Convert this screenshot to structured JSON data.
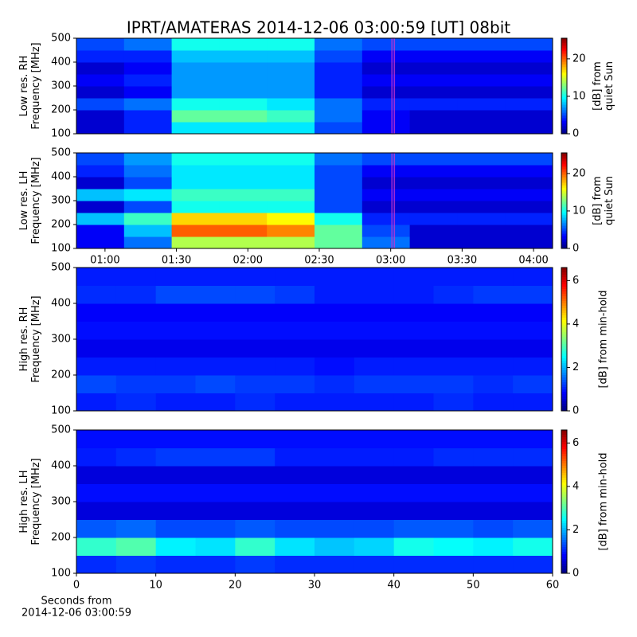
{
  "figure_title": "IPRT/AMATERAS 2014-12-06 03:00:59 [UT]   08bit",
  "chart_data": [
    {
      "type": "heatmap",
      "ylabel": [
        "Low res. RH",
        "Frequency [MHz]"
      ],
      "colorbar_label": [
        "[dB] from",
        "quiet Sun"
      ],
      "colormap": "jet",
      "xlim": [
        48,
        248
      ],
      "ylim": [
        100,
        500
      ],
      "yticks": [
        100,
        200,
        300,
        400,
        500
      ],
      "clim": [
        0,
        25.5
      ],
      "cticks": [
        0,
        10,
        20
      ],
      "marker_x": 181,
      "marker_color": "#cc33cc",
      "xbins": [
        48,
        68,
        88,
        108,
        128,
        148,
        168,
        188,
        208,
        228,
        248
      ],
      "ybins": [
        100,
        150,
        200,
        250,
        300,
        350,
        400,
        450,
        500
      ],
      "z": [
        [
          2,
          4,
          9,
          9,
          9,
          5,
          3,
          2,
          2,
          2
        ],
        [
          2,
          4,
          12,
          12,
          11,
          6,
          3,
          2,
          2,
          2
        ],
        [
          5,
          6,
          10,
          10,
          9,
          6,
          4,
          4,
          4,
          4
        ],
        [
          2,
          3,
          7,
          7,
          7,
          4,
          2,
          2,
          2,
          2
        ],
        [
          3,
          4,
          7,
          7,
          7,
          4,
          3,
          3,
          3,
          3
        ],
        [
          2,
          3,
          7,
          7,
          7,
          4,
          2,
          2,
          2,
          2
        ],
        [
          4,
          4,
          8,
          8,
          8,
          5,
          3,
          3,
          3,
          3
        ],
        [
          5,
          6,
          10,
          10,
          10,
          6,
          5,
          5,
          5,
          5
        ]
      ]
    },
    {
      "type": "heatmap",
      "ylabel": [
        "Low res. LH",
        "Frequency [MHz]"
      ],
      "colorbar_label": [
        "[dB] from",
        "quiet Sun"
      ],
      "colormap": "jet",
      "xlim": [
        48,
        248
      ],
      "ylim": [
        100,
        500
      ],
      "yticks": [
        100,
        200,
        300,
        400,
        500
      ],
      "xticks": [
        {
          "value": 60,
          "label": "01:00"
        },
        {
          "value": 90,
          "label": "01:30"
        },
        {
          "value": 120,
          "label": "02:00"
        },
        {
          "value": 150,
          "label": "02:30"
        },
        {
          "value": 180,
          "label": "03:00"
        },
        {
          "value": 210,
          "label": "03:30"
        },
        {
          "value": 240,
          "label": "04:00"
        }
      ],
      "clim": [
        0,
        25.5
      ],
      "cticks": [
        0,
        10,
        20
      ],
      "marker_x": 181,
      "marker_color": "#cc33cc",
      "xbins": [
        48,
        68,
        88,
        108,
        128,
        148,
        168,
        188,
        208,
        228,
        248
      ],
      "ybins": [
        100,
        150,
        200,
        250,
        300,
        350,
        400,
        450,
        500
      ],
      "z": [
        [
          3,
          6,
          14,
          14,
          14,
          12,
          6,
          2,
          2,
          2
        ],
        [
          3,
          8,
          20,
          20,
          19,
          12,
          5,
          2,
          2,
          2
        ],
        [
          8,
          11,
          17,
          17,
          16,
          10,
          4,
          4,
          4,
          4
        ],
        [
          2,
          5,
          10,
          10,
          10,
          5,
          2,
          2,
          2,
          2
        ],
        [
          8,
          9,
          11,
          11,
          11,
          5,
          3,
          3,
          3,
          3
        ],
        [
          2,
          5,
          9,
          9,
          9,
          5,
          2,
          2,
          2,
          2
        ],
        [
          4,
          6,
          9,
          9,
          9,
          5,
          3,
          3,
          3,
          3
        ],
        [
          5,
          7,
          10,
          10,
          10,
          6,
          5,
          5,
          5,
          5
        ]
      ]
    },
    {
      "type": "heatmap",
      "ylabel": [
        "High res. RH",
        "Frequency [MHz]"
      ],
      "colorbar_label": [
        "[dB] from min-hold"
      ],
      "colormap": "jet",
      "xlim": [
        0,
        60
      ],
      "ylim": [
        100,
        500
      ],
      "yticks": [
        100,
        200,
        300,
        400,
        500
      ],
      "clim": [
        0,
        6.6
      ],
      "cticks": [
        0,
        2,
        4,
        6
      ],
      "xbins": [
        0,
        5,
        10,
        15,
        20,
        25,
        30,
        35,
        40,
        45,
        50,
        55,
        60
      ],
      "ybins": [
        100,
        150,
        200,
        250,
        300,
        350,
        400,
        450,
        500
      ],
      "z": [
        [
          1.0,
          1.1,
          1.0,
          1.0,
          1.1,
          1.0,
          1.0,
          1.0,
          1.0,
          1.1,
          1.0,
          1.0
        ],
        [
          1.3,
          1.2,
          1.2,
          1.3,
          1.2,
          1.2,
          1.1,
          1.2,
          1.2,
          1.2,
          1.1,
          1.2
        ],
        [
          1.0,
          1.0,
          1.0,
          1.0,
          1.0,
          1.0,
          0.9,
          1.0,
          1.0,
          1.0,
          1.0,
          1.0
        ],
        [
          0.7,
          0.7,
          0.7,
          0.7,
          0.7,
          0.7,
          0.7,
          0.7,
          0.7,
          0.7,
          0.7,
          0.7
        ],
        [
          0.9,
          0.9,
          0.9,
          0.9,
          0.9,
          0.9,
          0.9,
          0.9,
          0.9,
          0.9,
          0.9,
          0.9
        ],
        [
          0.8,
          0.8,
          0.8,
          0.8,
          0.8,
          0.8,
          0.8,
          0.8,
          0.8,
          0.8,
          0.8,
          0.8
        ],
        [
          1.1,
          1.1,
          1.3,
          1.3,
          1.3,
          1.2,
          1.0,
          1.0,
          1.0,
          1.1,
          1.2,
          1.2
        ],
        [
          1.0,
          1.0,
          1.0,
          1.0,
          1.0,
          1.0,
          1.0,
          1.0,
          1.0,
          1.0,
          1.0,
          1.0
        ]
      ]
    },
    {
      "type": "heatmap",
      "ylabel": [
        "High res. LH",
        "Frequency [MHz]"
      ],
      "colorbar_label": [
        "[dB] from min-hold"
      ],
      "colormap": "jet",
      "xlim": [
        0,
        60
      ],
      "ylim": [
        100,
        500
      ],
      "yticks": [
        100,
        200,
        300,
        400,
        500
      ],
      "xticks": [
        0,
        10,
        20,
        30,
        40,
        50,
        60
      ],
      "xlabel": [
        "Seconds from",
        "2014-12-06 03:00:59"
      ],
      "clim": [
        0,
        6.6
      ],
      "cticks": [
        0,
        2,
        4,
        6
      ],
      "xbins": [
        0,
        5,
        10,
        15,
        20,
        25,
        30,
        35,
        40,
        45,
        50,
        55,
        60
      ],
      "ybins": [
        100,
        150,
        200,
        250,
        300,
        350,
        400,
        450,
        500
      ],
      "z": [
        [
          1.1,
          1.2,
          1.1,
          1.1,
          1.2,
          1.1,
          1.1,
          1.1,
          1.1,
          1.1,
          1.1,
          1.1
        ],
        [
          2.8,
          3.0,
          2.4,
          2.3,
          2.8,
          2.3,
          2.1,
          2.2,
          2.6,
          2.5,
          2.4,
          2.6
        ],
        [
          1.4,
          1.5,
          1.3,
          1.3,
          1.4,
          1.3,
          1.3,
          1.3,
          1.4,
          1.4,
          1.3,
          1.4
        ],
        [
          0.6,
          0.6,
          0.6,
          0.6,
          0.6,
          0.6,
          0.6,
          0.6,
          0.6,
          0.6,
          0.6,
          0.6
        ],
        [
          0.9,
          0.9,
          0.9,
          0.9,
          0.9,
          0.9,
          0.9,
          0.9,
          0.9,
          0.9,
          0.9,
          0.9
        ],
        [
          0.6,
          0.6,
          0.6,
          0.6,
          0.6,
          0.6,
          0.6,
          0.6,
          0.6,
          0.6,
          0.6,
          0.6
        ],
        [
          1.0,
          1.1,
          1.2,
          1.2,
          1.2,
          1.0,
          1.0,
          1.0,
          1.0,
          1.1,
          1.1,
          1.1
        ],
        [
          0.9,
          0.9,
          0.9,
          0.9,
          0.9,
          0.9,
          0.9,
          0.9,
          0.9,
          0.9,
          0.9,
          0.9
        ]
      ]
    }
  ]
}
